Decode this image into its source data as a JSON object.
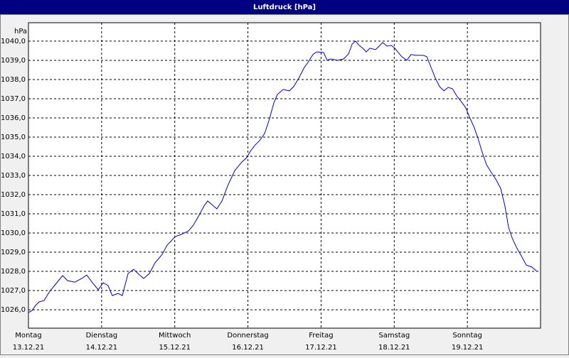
{
  "chart_data": {
    "type": "line",
    "title": "Luftdruck [hPa]",
    "y_unit": "hPa",
    "xlim": [
      0,
      168
    ],
    "xticks": [
      {
        "value": 0,
        "label": "Montag"
      },
      {
        "value": 24,
        "label": "Dienstag"
      },
      {
        "value": 48,
        "label": "Mittwoch"
      },
      {
        "value": 72,
        "label": "Donnerstag"
      },
      {
        "value": 96,
        "label": "Freitag"
      },
      {
        "value": 120,
        "label": "Samstag"
      },
      {
        "value": 144,
        "label": "Sonntag"
      }
    ],
    "xtick_dates": [
      "13.12.21",
      "14.12.21",
      "15.12.21",
      "16.12.21",
      "17.12.21",
      "18.12.21",
      "19.12.21"
    ],
    "ylim": [
      1025.04,
      1040.96
    ],
    "yticks": [
      {
        "value": 1026,
        "label": "1026,0"
      },
      {
        "value": 1027,
        "label": "1027,0"
      },
      {
        "value": 1028,
        "label": "1028,0"
      },
      {
        "value": 1029,
        "label": "1029,0"
      },
      {
        "value": 1030,
        "label": "1030,0"
      },
      {
        "value": 1031,
        "label": "1031,0"
      },
      {
        "value": 1032,
        "label": "1032,0"
      },
      {
        "value": 1033,
        "label": "1033,0"
      },
      {
        "value": 1034,
        "label": "1034,0"
      },
      {
        "value": 1035,
        "label": "1035,0"
      },
      {
        "value": 1036,
        "label": "1036,0"
      },
      {
        "value": 1037,
        "label": "1037,0"
      },
      {
        "value": 1038,
        "label": "1038,0"
      },
      {
        "value": 1039,
        "label": "1039,0"
      },
      {
        "value": 1040,
        "label": "1040,0"
      }
    ],
    "grid": true,
    "color": "#0000c0",
    "x": [
      0,
      1.2,
      2.3,
      3.5,
      5.1,
      7.0,
      9.3,
      11.2,
      12.8,
      15.2,
      17.5,
      19.1,
      21.0,
      22.9,
      24.5,
      26.1,
      27.5,
      29.4,
      30.8,
      32.7,
      34.5,
      36.2,
      37.8,
      39.7,
      41.5,
      43.9,
      45.5,
      46.7,
      48.1,
      50.2,
      52.5,
      54.1,
      56.0,
      57.6,
      58.8,
      60.2,
      61.8,
      63.5,
      65.3,
      67.7,
      70.0,
      71.6,
      72.8,
      74.2,
      75.8,
      77.5,
      78.9,
      80.5,
      81.7,
      83.5,
      85.6,
      87.0,
      88.7,
      90.5,
      91.7,
      93.3,
      94.5,
      96.8,
      98.0,
      99.2,
      101.5,
      103.4,
      105.0,
      106.2,
      107.3,
      108.5,
      109.7,
      110.8,
      112.0,
      113.9,
      114.8,
      116.2,
      117.6,
      119.0,
      120.2,
      121.3,
      122.5,
      124.1,
      125.5,
      127.2,
      129.5,
      130.7,
      131.8,
      133.5,
      134.9,
      136.3,
      137.7,
      139.1,
      140.5,
      142.3,
      143.5,
      144.7,
      146.1,
      147.5,
      148.9,
      150.3,
      151.7,
      153.3,
      154.9,
      156.3,
      157.5,
      158.7,
      160.3,
      161.7,
      163.3,
      165.2,
      166.8
    ],
    "values": [
      1025.85,
      1025.96,
      1026.22,
      1026.41,
      1026.48,
      1026.96,
      1027.41,
      1027.78,
      1027.52,
      1027.44,
      1027.63,
      1027.81,
      1027.41,
      1027.04,
      1027.41,
      1027.26,
      1026.74,
      1026.85,
      1026.74,
      1027.89,
      1028.11,
      1027.85,
      1027.63,
      1027.89,
      1028.44,
      1028.89,
      1029.37,
      1029.56,
      1029.81,
      1029.93,
      1030.11,
      1030.41,
      1030.93,
      1031.41,
      1031.67,
      1031.48,
      1031.26,
      1031.67,
      1032.44,
      1033.26,
      1033.7,
      1033.93,
      1034.26,
      1034.56,
      1034.81,
      1035.19,
      1035.85,
      1036.78,
      1037.22,
      1037.48,
      1037.41,
      1037.63,
      1038.07,
      1038.63,
      1038.89,
      1039.3,
      1039.44,
      1039.41,
      1039.0,
      1039.07,
      1039.0,
      1039.07,
      1039.33,
      1039.85,
      1040.0,
      1039.78,
      1039.63,
      1039.44,
      1039.63,
      1039.56,
      1039.7,
      1039.93,
      1039.74,
      1039.78,
      1039.63,
      1039.41,
      1039.19,
      1039.0,
      1039.3,
      1039.26,
      1039.26,
      1039.19,
      1038.74,
      1038.07,
      1037.63,
      1037.41,
      1037.59,
      1037.52,
      1037.15,
      1036.78,
      1036.52,
      1036.04,
      1035.56,
      1034.93,
      1034.19,
      1033.56,
      1033.19,
      1032.81,
      1032.33,
      1031.41,
      1030.3,
      1029.74,
      1029.19,
      1028.81,
      1028.33,
      1028.22,
      1028.0
    ]
  }
}
